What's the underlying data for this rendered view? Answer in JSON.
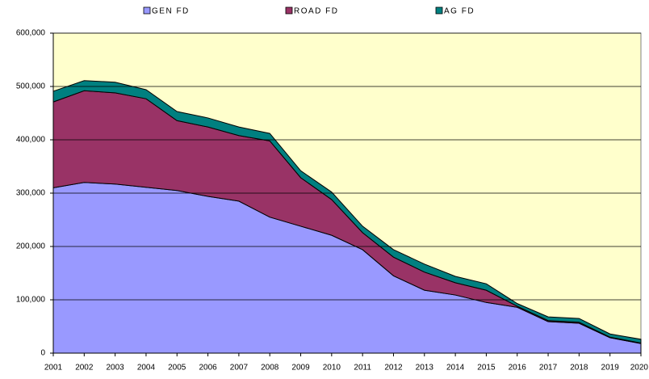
{
  "chart_data": {
    "type": "stacked_area",
    "categories": [
      "2001",
      "2002",
      "2003",
      "2004",
      "2005",
      "2006",
      "2007",
      "2008",
      "2009",
      "2010",
      "2011",
      "2012",
      "2013",
      "2014",
      "2015",
      "2016",
      "2017",
      "2018",
      "2019",
      "2020"
    ],
    "series": [
      {
        "name": "GEN  FD",
        "color": "#9999ff",
        "values": [
          310000,
          320000,
          317000,
          311000,
          305000,
          294000,
          285000,
          255000,
          238000,
          221000,
          194000,
          145000,
          118000,
          109000,
          95000,
          86000,
          59000,
          56000,
          29000,
          18000
        ]
      },
      {
        "name": "ROAD  FD",
        "color": "#993366",
        "values": [
          161000,
          172000,
          171000,
          166000,
          131000,
          130000,
          123000,
          143000,
          91000,
          67000,
          32000,
          35000,
          34000,
          23000,
          23000,
          2000,
          2000,
          2000,
          1000,
          1000
        ]
      },
      {
        "name": "AG  FD",
        "color": "#008080",
        "values": [
          20000,
          19000,
          20000,
          17000,
          17000,
          17000,
          16000,
          14000,
          13000,
          14000,
          12000,
          14000,
          15000,
          12000,
          12000,
          5000,
          7000,
          7000,
          6000,
          7000
        ]
      }
    ],
    "ylim": [
      0,
      600000
    ],
    "yticks": [
      {
        "value": 0,
        "label": "0"
      },
      {
        "value": 100000,
        "label": "100,000"
      },
      {
        "value": 200000,
        "label": "200,000"
      },
      {
        "value": 300000,
        "label": "300,000"
      },
      {
        "value": 400000,
        "label": "400,000"
      },
      {
        "value": 500000,
        "label": "500,000"
      },
      {
        "value": 600000,
        "label": "600,000"
      }
    ],
    "grid": true,
    "plot_background": "#ffffcc",
    "legend": "top"
  }
}
